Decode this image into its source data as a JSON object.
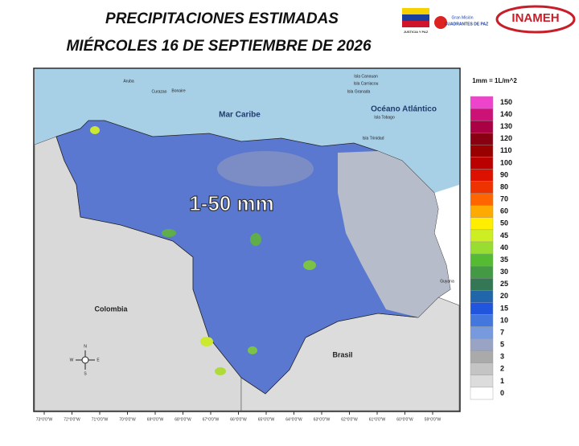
{
  "header": {
    "title": "PRECIPITACIONES  ESTIMADAS",
    "date": "MIÉRCOLES 16 DE SEPTIEMBRE DE 2026"
  },
  "logos": {
    "left": "JUSTICIA Y PAZ",
    "middle_top": "Gran Misión",
    "middle": "CUADRANTES DE PAZ",
    "right": "INAMEH"
  },
  "map": {
    "rain_label": "1-50 mm",
    "labels": {
      "sea": "Mar Caribe",
      "ocean": "Océano Atlántico",
      "colombia": "Colombia",
      "brasil": "Brasil",
      "guyana": "Guyana",
      "aruba": "Aruba",
      "curazao": "Curazao",
      "bonaire": "Bonaire",
      "canouan": "Isla Canouan",
      "carriacou": "Isla Carriacou",
      "granada": "Isla Granada",
      "tobago": "Isla Tobago",
      "trinidad": "Isla Trinidad"
    },
    "compass": {
      "n": "N",
      "s": "S",
      "e": "E",
      "w": "W"
    },
    "longitudes": [
      "73°0'0\"W",
      "72°0'0\"W",
      "71°0'0\"W",
      "70°0'0\"W",
      "69°0'0\"W",
      "68°0'0\"W",
      "67°0'0\"W",
      "66°0'0\"W",
      "65°0'0\"W",
      "64°0'0\"W",
      "63°0'0\"W",
      "62°0'0\"W",
      "61°0'0\"W",
      "60°0'0\"W",
      "59°0'0\"W"
    ]
  },
  "legend": {
    "unit": "1mm = 1L/m^2",
    "items": [
      {
        "label": 150,
        "color": "#ee44cc"
      },
      {
        "label": 140,
        "color": "#cc1177"
      },
      {
        "label": 130,
        "color": "#aa0044"
      },
      {
        "label": 120,
        "color": "#880011"
      },
      {
        "label": 110,
        "color": "#990000"
      },
      {
        "label": 100,
        "color": "#bb0000"
      },
      {
        "label": 90,
        "color": "#dd1100"
      },
      {
        "label": 80,
        "color": "#ee3300"
      },
      {
        "label": 70,
        "color": "#ff6600"
      },
      {
        "label": 60,
        "color": "#ffaa00"
      },
      {
        "label": 50,
        "color": "#ffee00"
      },
      {
        "label": 45,
        "color": "#ccee22"
      },
      {
        "label": 40,
        "color": "#99dd33"
      },
      {
        "label": 35,
        "color": "#55bb33"
      },
      {
        "label": 30,
        "color": "#449944"
      },
      {
        "label": 25,
        "color": "#337755"
      },
      {
        "label": 20,
        "color": "#2266aa"
      },
      {
        "label": 15,
        "color": "#2255dd"
      },
      {
        "label": 10,
        "color": "#4477dd"
      },
      {
        "label": 7,
        "color": "#7799dd"
      },
      {
        "label": 5,
        "color": "#99a4c4"
      },
      {
        "label": 3,
        "color": "#aaaaaa"
      },
      {
        "label": 2,
        "color": "#c4c4c4"
      },
      {
        "label": 1,
        "color": "#dcdcdc"
      },
      {
        "label": 0,
        "color": "#ffffff"
      }
    ]
  }
}
